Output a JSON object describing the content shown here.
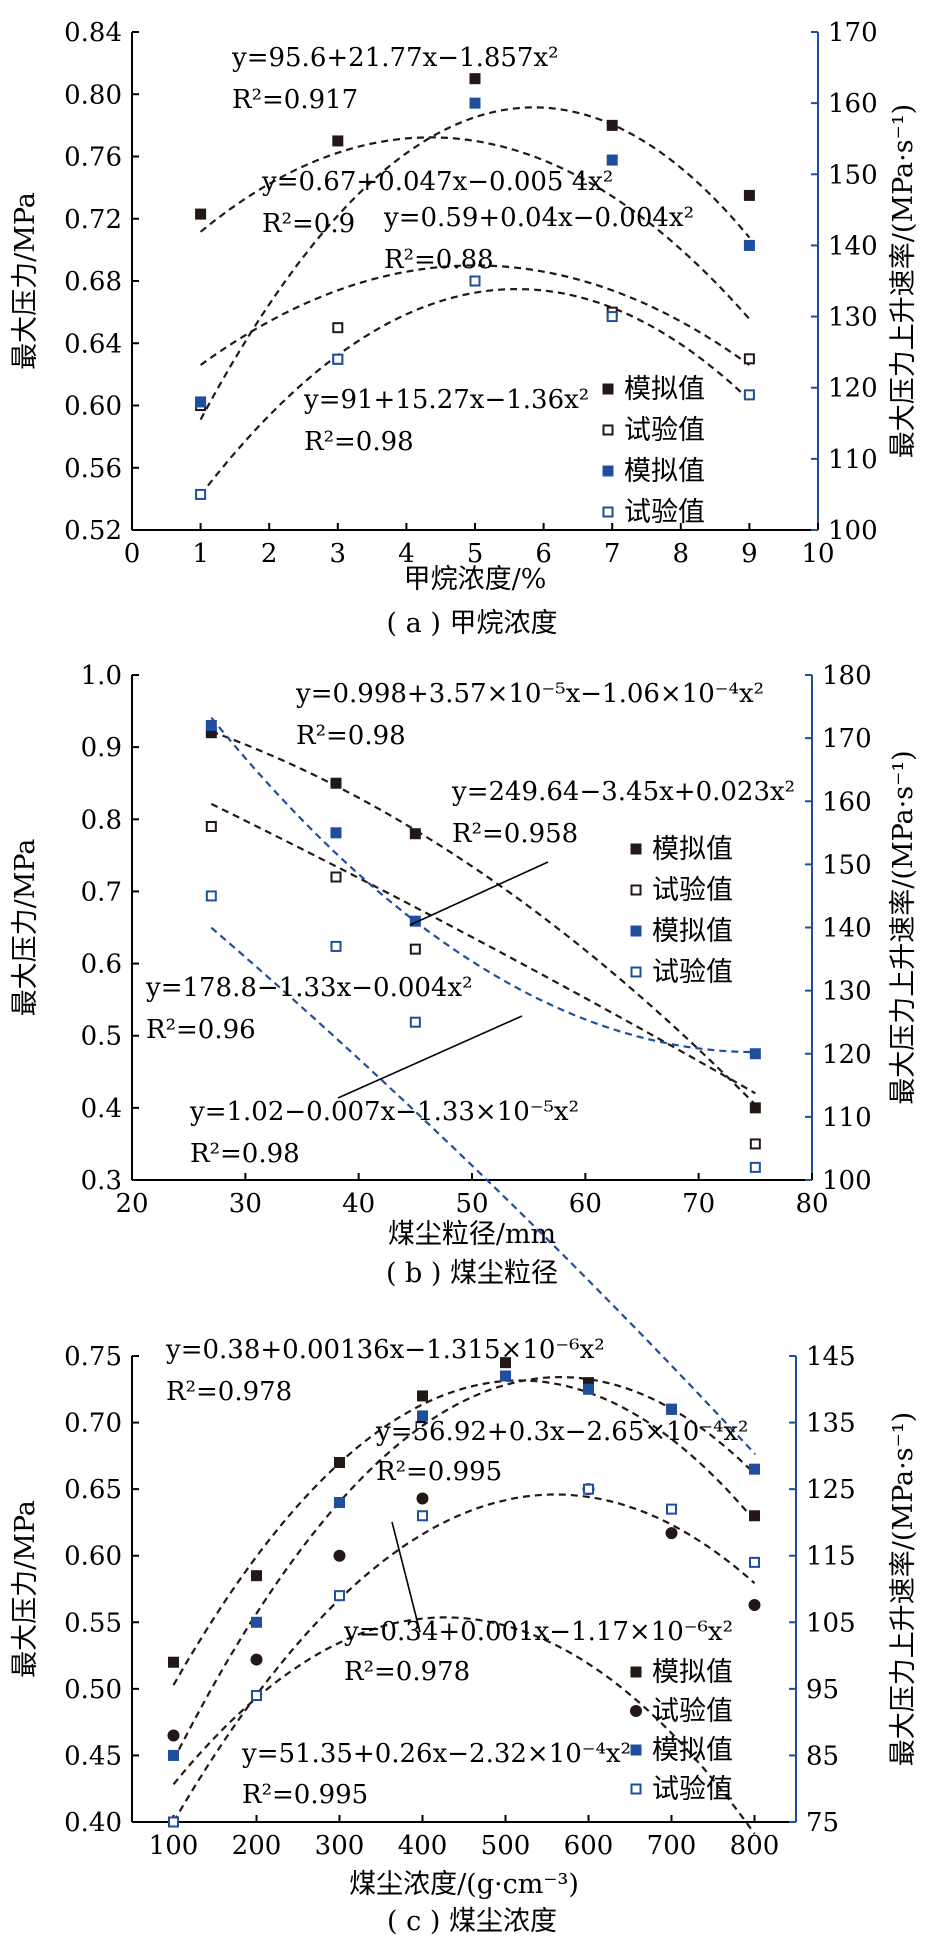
{
  "chart_data": [
    {
      "type": "scatter",
      "subtitle": "( a ) 甲烷浓度",
      "xlabel": "甲烷浓度/%",
      "ylabel_left": "最大压力/MPa",
      "ylabel_right": "最大压力上升速率/(MPa·s⁻¹)",
      "xlim": [
        0,
        10
      ],
      "ylim_left": [
        0.52,
        0.84
      ],
      "ylim_right": [
        100,
        170
      ],
      "xticks": [
        "0",
        "1",
        "2",
        "3",
        "4",
        "5",
        "6",
        "7",
        "8",
        "9",
        "10"
      ],
      "yticks_left": [
        "0.52",
        "0.56",
        "0.60",
        "0.64",
        "0.68",
        "0.72",
        "0.76",
        "0.80",
        "0.84"
      ],
      "yticks_right": [
        "100",
        "110",
        "120",
        "130",
        "140",
        "150",
        "160",
        "170"
      ],
      "legend": [
        "模拟值",
        "试验值",
        "模拟值",
        "试验值"
      ],
      "series": [
        {
          "name": "模拟值",
          "axis": "left",
          "marker": "square-filled",
          "color": "#231815",
          "x": [
            1,
            3,
            5,
            7,
            9
          ],
          "y": [
            0.723,
            0.77,
            0.81,
            0.78,
            0.735
          ]
        },
        {
          "name": "试验值",
          "axis": "left",
          "marker": "square-open",
          "color": "#231815",
          "x": [
            1,
            3,
            5,
            7,
            9
          ],
          "y": [
            0.6,
            0.65,
            0.68,
            0.66,
            0.63
          ]
        },
        {
          "name": "模拟值",
          "axis": "right",
          "marker": "square-filled",
          "color": "#1f4e9e",
          "x": [
            1,
            3,
            5,
            7,
            9
          ],
          "y": [
            118,
            124,
            160,
            152,
            140
          ]
        },
        {
          "name": "试验值",
          "axis": "right",
          "marker": "square-open",
          "color": "#1f4e9e",
          "x": [
            1,
            3,
            5,
            7,
            9
          ],
          "y": [
            105,
            124,
            135,
            130,
            119
          ]
        }
      ],
      "fits": [
        {
          "axis": "left",
          "color": "#231815",
          "c": [
            0.67,
            0.047,
            -0.0054
          ]
        },
        {
          "axis": "left",
          "color": "#231815",
          "c": [
            0.59,
            0.04,
            -0.004
          ]
        },
        {
          "axis": "right",
          "color": "#231815",
          "c": [
            95.6,
            21.77,
            -1.857
          ]
        },
        {
          "axis": "right",
          "color": "#231815",
          "c": [
            91,
            15.27,
            -1.36
          ]
        }
      ],
      "annotations": [
        {
          "id": "eq-a1",
          "eq": "y=95.6+21.77x−1.857x²",
          "r2": "R²=0.917"
        },
        {
          "id": "eq-a2",
          "eq": "y=0.67+0.047x−0.005 4x²",
          "r2": "R²=0.9"
        },
        {
          "id": "eq-a3",
          "eq": "y=0.59+0.04x−0.004x²",
          "r2": "R²=0.88"
        },
        {
          "id": "eq-a4",
          "eq": "y=91+15.27x−1.36x²",
          "r2": "R²=0.98"
        }
      ]
    },
    {
      "type": "scatter",
      "subtitle": "( b ) 煤尘粒径",
      "xlabel": "煤尘粒径/mm",
      "ylabel_left": "最大压力/MPa",
      "ylabel_right": "最大压力上升速率/(MPa·s⁻¹)",
      "xlim": [
        20,
        80
      ],
      "ylim_left": [
        0.3,
        1.0
      ],
      "ylim_right": [
        100,
        180
      ],
      "xticks": [
        "20",
        "30",
        "40",
        "50",
        "60",
        "70",
        "80"
      ],
      "yticks_left": [
        "0.3",
        "0.4",
        "0.5",
        "0.6",
        "0.7",
        "0.8",
        "0.9",
        "1.0"
      ],
      "yticks_right": [
        "100",
        "110",
        "120",
        "130",
        "140",
        "150",
        "160",
        "170",
        "180"
      ],
      "legend": [
        "模拟值",
        "试验值",
        "模拟值",
        "试验值"
      ],
      "series": [
        {
          "name": "模拟值",
          "axis": "left",
          "marker": "square-filled",
          "color": "#231815",
          "x": [
            27,
            38,
            45,
            75
          ],
          "y": [
            0.92,
            0.85,
            0.78,
            0.4
          ]
        },
        {
          "name": "试验值",
          "axis": "left",
          "marker": "square-open",
          "color": "#231815",
          "x": [
            27,
            38,
            45,
            75
          ],
          "y": [
            0.79,
            0.72,
            0.62,
            0.35
          ]
        },
        {
          "name": "模拟值",
          "axis": "right",
          "marker": "square-filled",
          "color": "#1f4e9e",
          "x": [
            27,
            38,
            45,
            75
          ],
          "y": [
            172,
            155,
            141,
            120
          ]
        },
        {
          "name": "试验值",
          "axis": "right",
          "marker": "square-open",
          "color": "#1f4e9e",
          "x": [
            27,
            38,
            45,
            75
          ],
          "y": [
            145,
            137,
            125,
            102
          ]
        }
      ],
      "fits": [
        {
          "axis": "left",
          "color": "#231815",
          "c": [
            0.998,
            3.57e-05,
            -0.000106
          ]
        },
        {
          "axis": "left",
          "color": "#231815",
          "c": [
            1.02,
            -0.007,
            -1.33e-05
          ]
        },
        {
          "axis": "right",
          "color": "#1f4e9e",
          "c": [
            249.64,
            -3.45,
            0.023
          ]
        },
        {
          "axis": "right",
          "color": "#1f4e9e",
          "c": [
            178.8,
            -1.33,
            -0.004
          ]
        }
      ],
      "annotations": [
        {
          "id": "eq-b1",
          "eq": "y=0.998+3.57×10⁻⁵x−1.06×10⁻⁴x²",
          "r2": "R²=0.98"
        },
        {
          "id": "eq-b2",
          "eq": "y=249.64−3.45x+0.023x²",
          "r2": "R²=0.958"
        },
        {
          "id": "eq-b3",
          "eq": "y=178.8−1.33x−0.004x²",
          "r2": "R²=0.96"
        },
        {
          "id": "eq-b4",
          "eq": "y=1.02−0.007x−1.33×10⁻⁵x²",
          "r2": "R²=0.98"
        }
      ]
    },
    {
      "type": "scatter",
      "subtitle": "( c ) 煤尘浓度",
      "xlabel": "煤尘浓度/(g·cm⁻³)",
      "ylabel_left": "最大压力/MPa",
      "ylabel_right": "最大压力上升速率/(MPa·s⁻¹)",
      "xlim": [
        50,
        850
      ],
      "ylim_left": [
        0.4,
        0.75
      ],
      "ylim_right": [
        75,
        145
      ],
      "xticks": [
        "100",
        "200",
        "300",
        "400",
        "500",
        "600",
        "700",
        "800"
      ],
      "yticks_left": [
        "0.40",
        "0.45",
        "0.50",
        "0.55",
        "0.60",
        "0.65",
        "0.70",
        "0.75"
      ],
      "yticks_right": [
        "75",
        "85",
        "95",
        "105",
        "115",
        "125",
        "135",
        "145"
      ],
      "legend": [
        "模拟值",
        "试验值",
        "模拟值",
        "试验值"
      ],
      "series": [
        {
          "name": "模拟值",
          "axis": "left",
          "marker": "square-filled",
          "color": "#231815",
          "x": [
            100,
            200,
            300,
            400,
            500,
            600,
            700,
            800
          ],
          "y": [
            0.52,
            0.585,
            0.67,
            0.72,
            0.745,
            0.73,
            0.71,
            0.63
          ]
        },
        {
          "name": "试验值",
          "axis": "left",
          "marker": "circle-filled",
          "color": "#231815",
          "x": [
            100,
            200,
            300,
            400,
            600,
            700,
            800
          ],
          "y": [
            0.465,
            0.522,
            0.6,
            0.643,
            0.65,
            0.617,
            0.563
          ]
        },
        {
          "name": "模拟值",
          "axis": "right",
          "marker": "square-filled",
          "color": "#1f4e9e",
          "x": [
            100,
            200,
            300,
            400,
            500,
            600,
            700,
            800
          ],
          "y": [
            85,
            105,
            123,
            136,
            142,
            140,
            137,
            128
          ]
        },
        {
          "name": "试验值",
          "axis": "right",
          "marker": "square-open",
          "color": "#1f4e9e",
          "x": [
            100,
            200,
            300,
            400,
            600,
            700,
            800
          ],
          "y": [
            75,
            94,
            109,
            121,
            125,
            122,
            114
          ]
        }
      ],
      "fits": [
        {
          "axis": "left",
          "color": "#231815",
          "c": [
            0.38,
            0.00136,
            -1.315e-06
          ]
        },
        {
          "axis": "left",
          "color": "#231815",
          "c": [
            0.34,
            0.001,
            -1.17e-06
          ]
        },
        {
          "axis": "right",
          "color": "#231815",
          "c": [
            56.92,
            0.3,
            -0.000265
          ]
        },
        {
          "axis": "right",
          "color": "#231815",
          "c": [
            51.35,
            0.26,
            -0.000232
          ]
        }
      ],
      "annotations": [
        {
          "id": "eq-c1",
          "eq": "y=0.38+0.00136x−1.315×10⁻⁶x²",
          "r2": "R²=0.978"
        },
        {
          "id": "eq-c2",
          "eq": "y=56.92+0.3x−2.65×10⁻⁴x²",
          "r2": "R²=0.995"
        },
        {
          "id": "eq-c3",
          "eq": "y=0.34+0.001x−1.17×10⁻⁶x²",
          "r2": "R²=0.978"
        },
        {
          "id": "eq-c4",
          "eq": "y=51.35+0.26x−2.32×10⁻⁴x²",
          "r2": "R²=0.995"
        }
      ]
    }
  ]
}
